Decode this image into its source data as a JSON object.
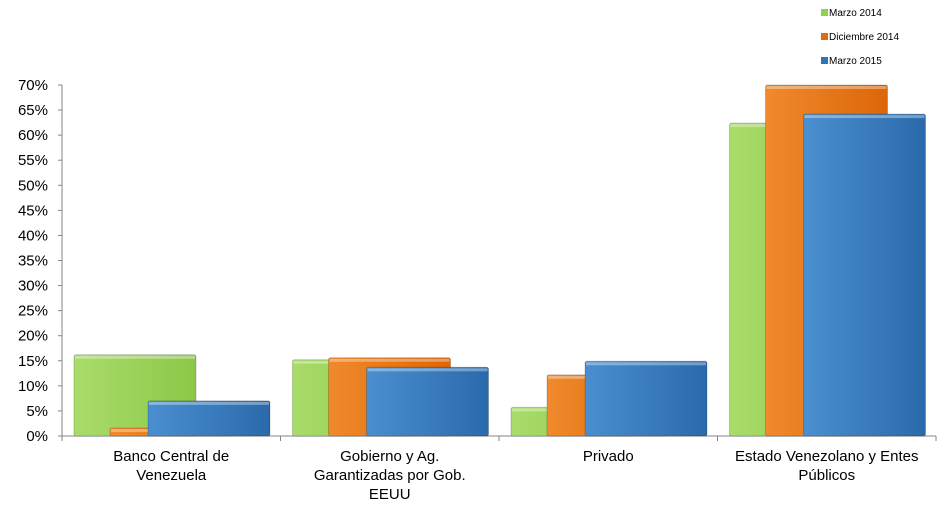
{
  "chart_data": {
    "type": "bar",
    "title": "",
    "xlabel": "",
    "ylabel": "",
    "ylim": [
      0,
      70
    ],
    "yticks": [
      "0%",
      "5%",
      "10%",
      "15%",
      "20%",
      "25%",
      "30%",
      "35%",
      "40%",
      "45%",
      "50%",
      "55%",
      "60%",
      "65%",
      "70%"
    ],
    "ytick_values": [
      0,
      5,
      10,
      15,
      20,
      25,
      30,
      35,
      40,
      45,
      50,
      55,
      60,
      65,
      70
    ],
    "categories": [
      [
        "Banco Central de",
        "Venezuela"
      ],
      [
        "Gobierno y Ag.",
        "Garantizadas por Gob.",
        "EEUU"
      ],
      [
        "Privado"
      ],
      [
        "Estado Venezolano y Entes",
        "Públicos"
      ]
    ],
    "series": [
      {
        "name": "Marzo 2014",
        "color": "#92d050",
        "values": [
          16.2,
          15.2,
          5.7,
          62.4
        ]
      },
      {
        "name": "Diciembre 2014",
        "color": "#e36c0a",
        "values": [
          1.6,
          15.6,
          12.2,
          70.0
        ]
      },
      {
        "name": "Marzo 2015",
        "color": "#2e75b6",
        "values": [
          7.0,
          13.7,
          14.9,
          64.2
        ]
      }
    ],
    "grid": false,
    "legend_position": "top-right"
  }
}
